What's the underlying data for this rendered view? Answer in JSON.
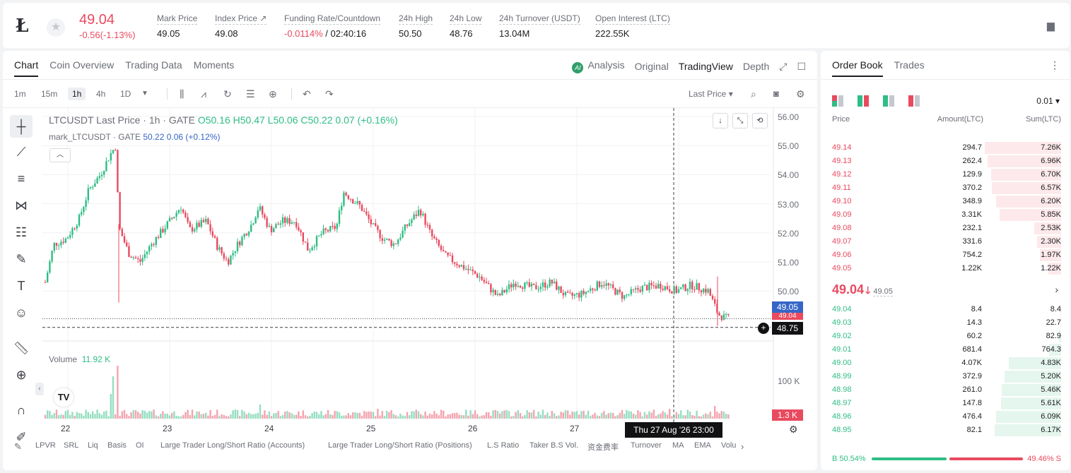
{
  "ticker": {
    "price": "49.04",
    "change": "-0.56(-1.13%)",
    "stats": [
      {
        "label": "Mark Price",
        "value": "49.05"
      },
      {
        "label": "Index Price ↗",
        "value": "49.08"
      },
      {
        "label": "Funding Rate/Countdown",
        "value_neg": "-0.0114%",
        "value": " / 02:40:16"
      },
      {
        "label": "24h High",
        "value": "50.50"
      },
      {
        "label": "24h Low",
        "value": "48.76"
      },
      {
        "label": "24h Turnover (USDT)",
        "value": "13.04M"
      },
      {
        "label": "Open Interest (LTC)",
        "value": "222.55K"
      }
    ]
  },
  "chart_panel": {
    "tabs": [
      "Chart",
      "Coin Overview",
      "Trading Data",
      "Moments"
    ],
    "views": {
      "analysis": "Analysis",
      "original": "Original",
      "tradingview": "TradingView",
      "depth": "Depth"
    },
    "timeframes": [
      "1m",
      "15m",
      "1h",
      "4h",
      "1D"
    ],
    "price_type": "Last Price ▾",
    "legend": {
      "symbol": "LTCUSDT Last Price · 1h · GATE",
      "ohlc": "O50.16  H50.47  L50.06  C50.22  0.07  (+0.16%)",
      "mark": "mark_LTCUSDT · GATE",
      "mark_values": "50.22  0.06  (+0.12%)"
    },
    "volume_label": "Volume",
    "volume_value": "11.92 K",
    "y_axis": [
      "56.00",
      "55.00",
      "54.00",
      "53.00",
      "52.00",
      "51.00",
      "50.00"
    ],
    "price_tags": {
      "mark": "49.05",
      "last": "49.04",
      "cursor": "48.75"
    },
    "volume_axis": "100 K",
    "volume_tag": "1.3 K",
    "x_axis": [
      "22",
      "23",
      "24",
      "25",
      "26",
      "27"
    ],
    "crosshair_time": "Thu 27 Aug '26   23:00",
    "indicators": [
      "LPVR",
      "SRL",
      "Liq",
      "Basis",
      "OI",
      "Large Trader Long/Short Ratio (Accounts)",
      "Large Trader Long/Short Ratio (Positions)",
      "L.S Ratio",
      "Taker B.S Vol.",
      "资金费率",
      "Turnover",
      "MA",
      "EMA",
      "Volu"
    ],
    "colors": {
      "up": "#2ebd85",
      "down": "#e94a5f"
    }
  },
  "chart_data": {
    "type": "candlestick",
    "x_axis_ticks": [
      "22",
      "23",
      "24",
      "25",
      "26",
      "27"
    ],
    "ylim": [
      48.5,
      56.2
    ],
    "points": [
      {
        "x": "22",
        "close": 51.6
      },
      {
        "x": "22 (peak)",
        "close": 55.0
      },
      {
        "x": "23",
        "close": 51.8
      },
      {
        "x": "23 (high)",
        "close": 52.9
      },
      {
        "x": "24",
        "close": 52.3
      },
      {
        "x": "24 (high)",
        "close": 53.4
      },
      {
        "x": "25",
        "close": 52.1
      },
      {
        "x": "26",
        "close": 50.3
      },
      {
        "x": "27",
        "close": 50.0
      },
      {
        "x": "27 23:00",
        "close": 49.04
      }
    ]
  },
  "orderbook": {
    "tabs": [
      "Order Book",
      "Trades"
    ],
    "precision": "0.01 ▾",
    "headers": {
      "price": "Price",
      "amount": "Amount(LTC)",
      "sum": "Sum(LTC)"
    },
    "asks": [
      {
        "price": "49.14",
        "amount": "294.7",
        "sum": "7.26K",
        "depth": 0.76
      },
      {
        "price": "49.13",
        "amount": "262.4",
        "sum": "6.96K",
        "depth": 0.73
      },
      {
        "price": "49.12",
        "amount": "129.9",
        "sum": "6.70K",
        "depth": 0.7
      },
      {
        "price": "49.11",
        "amount": "370.2",
        "sum": "6.57K",
        "depth": 0.69
      },
      {
        "price": "49.10",
        "amount": "348.9",
        "sum": "6.20K",
        "depth": 0.65
      },
      {
        "price": "49.09",
        "amount": "3.31K",
        "sum": "5.85K",
        "depth": 0.61
      },
      {
        "price": "49.08",
        "amount": "232.1",
        "sum": "2.53K",
        "depth": 0.27
      },
      {
        "price": "49.07",
        "amount": "331.6",
        "sum": "2.30K",
        "depth": 0.24
      },
      {
        "price": "49.06",
        "amount": "754.2",
        "sum": "1.97K",
        "depth": 0.21
      },
      {
        "price": "49.05",
        "amount": "1.22K",
        "sum": "1.22K",
        "depth": 0.13
      }
    ],
    "last_price": "49.04",
    "mark_price": "49.05",
    "bids": [
      {
        "price": "49.04",
        "amount": "8.4",
        "sum": "8.4",
        "depth": 0.01
      },
      {
        "price": "49.03",
        "amount": "14.3",
        "sum": "22.7",
        "depth": 0.01
      },
      {
        "price": "49.02",
        "amount": "60.2",
        "sum": "82.9",
        "depth": 0.02
      },
      {
        "price": "49.01",
        "amount": "681.4",
        "sum": "764.3",
        "depth": 0.12
      },
      {
        "price": "49.00",
        "amount": "4.07K",
        "sum": "4.83K",
        "depth": 0.52
      },
      {
        "price": "48.99",
        "amount": "372.9",
        "sum": "5.20K",
        "depth": 0.56
      },
      {
        "price": "48.98",
        "amount": "261.0",
        "sum": "5.46K",
        "depth": 0.59
      },
      {
        "price": "48.97",
        "amount": "147.8",
        "sum": "5.61K",
        "depth": 0.6
      },
      {
        "price": "48.96",
        "amount": "476.4",
        "sum": "6.09K",
        "depth": 0.65
      },
      {
        "price": "48.95",
        "amount": "82.1",
        "sum": "6.17K",
        "depth": 0.66
      }
    ],
    "buy_ratio": "B 50.54%",
    "sell_ratio": "49.46% S"
  }
}
